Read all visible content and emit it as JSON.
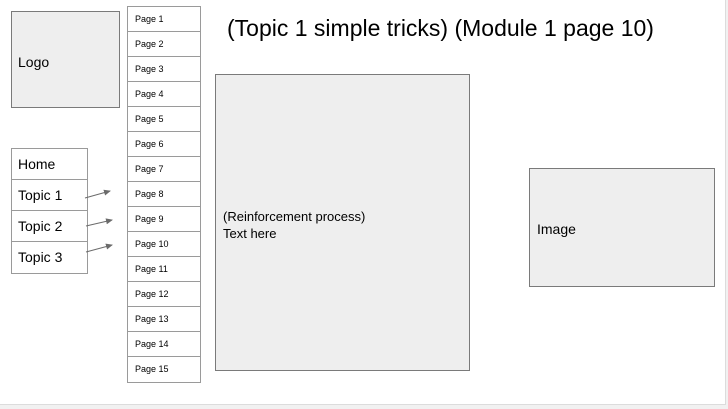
{
  "logo": {
    "label": "Logo"
  },
  "nav": [
    {
      "label": "Home"
    },
    {
      "label": "Topic 1"
    },
    {
      "label": "Topic 2"
    },
    {
      "label": "Topic 3"
    }
  ],
  "pages": [
    "Page 1",
    "Page 2",
    "Page 3",
    "Page 4",
    "Page 5",
    "Page 6",
    "Page 7",
    "Page 8",
    "Page 9",
    "Page 10",
    "Page 11",
    "Page 12",
    "Page 13",
    "Page 14",
    "Page 15"
  ],
  "title": "(Topic 1 simple tricks) (Module 1 page 10)",
  "content": {
    "line1": "(Reinforcement process)",
    "line2": "Text here"
  },
  "image": {
    "label": "Image"
  },
  "colors": {
    "box_fill": "#eeeeee",
    "border": "#7a7a7a",
    "arrow": "#6b6b6b"
  }
}
